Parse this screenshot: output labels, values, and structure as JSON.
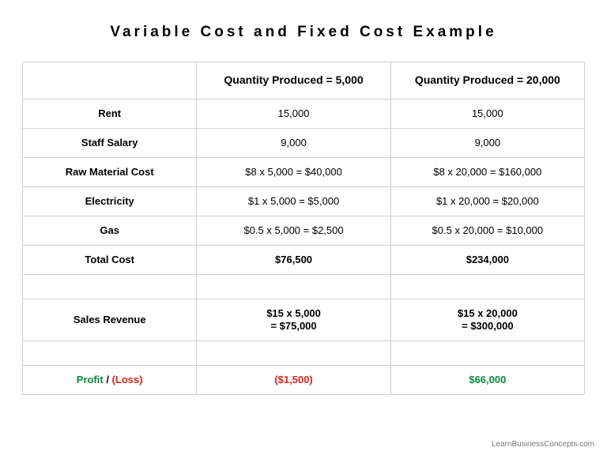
{
  "title": "Variable Cost and Fixed Cost Example",
  "table": {
    "header": {
      "blank": "",
      "col1": "Quantity Produced = 5,000",
      "col2": "Quantity Produced = 20,000"
    },
    "rows": {
      "rent": {
        "label": "Rent",
        "c1": "15,000",
        "c2": "15,000"
      },
      "salary": {
        "label": "Staff Salary",
        "c1": "9,000",
        "c2": "9,000"
      },
      "raw": {
        "label": "Raw Material Cost",
        "c1": "$8 x 5,000 = $40,000",
        "c2": "$8 x 20,000 = $160,000"
      },
      "electricity": {
        "label": "Electricity",
        "c1": "$1 x 5,000 = $5,000",
        "c2": "$1 x 20,000 = $20,000"
      },
      "gas": {
        "label": "Gas",
        "c1": "$0.5 x 5,000 = $2,500",
        "c2": "$0.5 x 20,000 = $10,000"
      },
      "total": {
        "label": "Total Cost",
        "c1": "$76,500",
        "c2": "$234,000"
      },
      "revenue": {
        "label": "Sales Revenue",
        "c1": "$15 x 5,000\n= $75,000",
        "c2": "$15 x 20,000\n= $300,000"
      },
      "profit": {
        "label_profit": "Profit",
        "label_sep": " / ",
        "label_loss": "(Loss)",
        "c1": "($1,500)",
        "c2": "$66,000"
      }
    }
  },
  "attribution": "LearnBusinessConcepts.com",
  "style": {
    "background_color": "#ffffff",
    "text_color": "#000000",
    "border_color": "#d0d0d0",
    "profit_color": "#0a8a3a",
    "loss_color": "#d8261c",
    "title_fontsize": 19,
    "title_letter_spacing": 4,
    "cell_fontsize": 13,
    "header_fontsize": 14,
    "column_widths_pct": [
      31,
      34.5,
      34.5
    ]
  }
}
